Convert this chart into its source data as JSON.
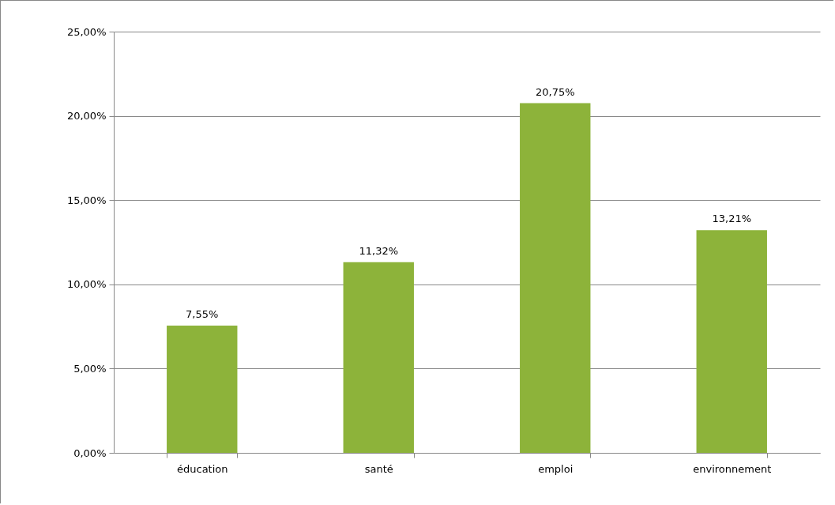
{
  "chart_data": {
    "type": "bar",
    "categories": [
      "éducation",
      "santé",
      "emploi",
      "environnement"
    ],
    "values": [
      7.55,
      11.32,
      20.75,
      13.21
    ],
    "value_labels": [
      "7,55%",
      "11,32%",
      "20,75%",
      "13,21%"
    ],
    "color": "#8db33a",
    "ylim": [
      0,
      25
    ],
    "yticks": [
      {
        "value": 0,
        "label": "0,00%"
      },
      {
        "value": 5,
        "label": "5,00%"
      },
      {
        "value": 10,
        "label": "10,00%"
      },
      {
        "value": 15,
        "label": "15,00%"
      },
      {
        "value": 20,
        "label": "20,00%"
      },
      {
        "value": 25,
        "label": "25,00%"
      }
    ],
    "grid": "y"
  }
}
